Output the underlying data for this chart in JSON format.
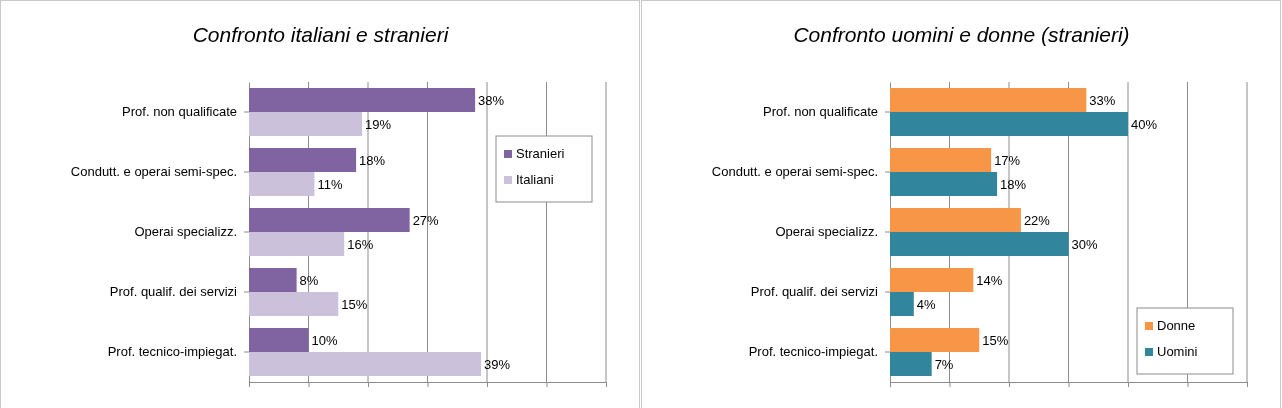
{
  "chart_data": [
    {
      "type": "bar",
      "orientation": "horizontal",
      "title": "Confronto italiani e stranieri",
      "categories": [
        "Prof. non qualificate",
        "Condutt. e operai semi-spec.",
        "Operai specializz.",
        "Prof. qualif. dei servizi",
        "Prof. tecnico-impiegat."
      ],
      "series": [
        {
          "name": "Stranieri",
          "color": "#8064a2",
          "values": [
            38,
            18,
            27,
            8,
            10
          ],
          "value_labels": [
            "38%",
            "18%",
            "27%",
            "8%",
            "10%"
          ]
        },
        {
          "name": "Italiani",
          "color": "#ccc1da",
          "values": [
            19,
            11,
            16,
            15,
            39
          ],
          "value_labels": [
            "19%",
            "11%",
            "16%",
            "15%",
            "39%"
          ]
        }
      ],
      "xlim": [
        0,
        60
      ],
      "xticks": [
        {
          "value": 0,
          "label": null
        },
        {
          "value": 10,
          "label": null
        },
        {
          "value": 20,
          "label": null
        },
        {
          "value": 30,
          "label": null
        },
        {
          "value": 40,
          "label": null
        },
        {
          "value": 50,
          "label": null
        },
        {
          "value": 60,
          "label": null
        }
      ],
      "grid": "x",
      "legend": "right",
      "tick_labels": "y"
    },
    {
      "type": "bar",
      "orientation": "horizontal",
      "title": "Confronto uomini e donne (stranieri)",
      "categories": [
        "Prof. non qualificate",
        "Condutt. e operai semi-spec.",
        "Operai specializz.",
        "Prof. qualif. dei servizi",
        "Prof. tecnico-impiegat."
      ],
      "series": [
        {
          "name": "Donne",
          "color": "#f79646",
          "values": [
            33,
            17,
            22,
            14,
            15
          ],
          "value_labels": [
            "33%",
            "17%",
            "22%",
            "14%",
            "15%"
          ]
        },
        {
          "name": "Uomini",
          "color": "#31859c",
          "values": [
            40,
            18,
            30,
            4,
            7
          ],
          "value_labels": [
            "40%",
            "18%",
            "30%",
            "4%",
            "7%"
          ]
        }
      ],
      "xlim": [
        0,
        60
      ],
      "xticks": [
        {
          "value": 0,
          "label": null
        },
        {
          "value": 10,
          "label": null
        },
        {
          "value": 20,
          "label": null
        },
        {
          "value": 30,
          "label": null
        },
        {
          "value": 40,
          "label": null
        },
        {
          "value": 50,
          "label": null
        },
        {
          "value": 60,
          "label": null
        }
      ],
      "grid": "x",
      "legend": "bottom right",
      "tick_labels": "y"
    }
  ]
}
